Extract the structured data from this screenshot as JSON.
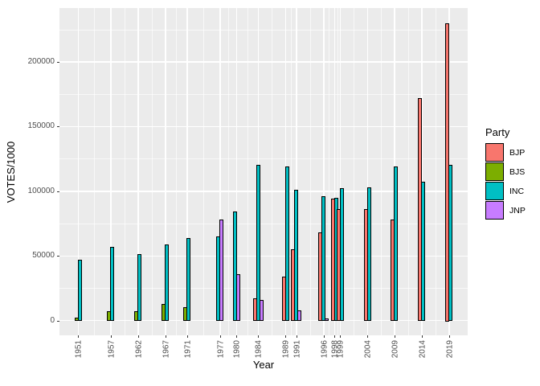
{
  "figure": {
    "panel_bg": "#EBEBEB",
    "grid_color": "#FFFFFF",
    "axis_text_color": "#4D4D4D",
    "bar_outline": "#000000"
  },
  "chart_data": {
    "type": "bar",
    "title": "",
    "xlabel": "Year",
    "ylabel": "VOTES/1000",
    "legend_title": "Party",
    "legend_position": "right",
    "grid": true,
    "xlim": [
      1947.6,
      2022.4
    ],
    "ylim": [
      -11500,
      241500
    ],
    "x_ticks": [
      1951,
      1957,
      1962,
      1967,
      1971,
      1977,
      1980,
      1984,
      1989,
      1991,
      1996,
      1998,
      1999,
      2004,
      2009,
      2014,
      2019
    ],
    "y_ticks": [
      0,
      50000,
      100000,
      150000,
      200000
    ],
    "y_tick_labels": [
      "0",
      "50000",
      "100000",
      "150000",
      "200000"
    ],
    "y_minor_ticks": [
      25000,
      75000,
      125000,
      175000,
      225000
    ],
    "parties": [
      {
        "name": "BJP",
        "color": "#F8766D"
      },
      {
        "name": "BJS",
        "color": "#7CAE00"
      },
      {
        "name": "INC",
        "color": "#00BFC4"
      },
      {
        "name": "JNP",
        "color": "#C77CFF"
      }
    ],
    "groups": [
      {
        "year": 1951,
        "bars": [
          {
            "party": "BJS",
            "value": 2000
          },
          {
            "party": "INC",
            "value": 47000
          }
        ]
      },
      {
        "year": 1957,
        "bars": [
          {
            "party": "BJS",
            "value": 7000
          },
          {
            "party": "INC",
            "value": 57000
          }
        ]
      },
      {
        "year": 1962,
        "bars": [
          {
            "party": "BJS",
            "value": 7000
          },
          {
            "party": "INC",
            "value": 51000
          }
        ]
      },
      {
        "year": 1967,
        "bars": [
          {
            "party": "BJS",
            "value": 13000
          },
          {
            "party": "INC",
            "value": 59000
          }
        ]
      },
      {
        "year": 1971,
        "bars": [
          {
            "party": "BJS",
            "value": 10000
          },
          {
            "party": "INC",
            "value": 64000
          }
        ]
      },
      {
        "year": 1977,
        "bars": [
          {
            "party": "INC",
            "value": 65000
          },
          {
            "party": "JNP",
            "value": 78000
          }
        ]
      },
      {
        "year": 1980,
        "bars": [
          {
            "party": "INC",
            "value": 84000
          },
          {
            "party": "JNP",
            "value": 36000
          }
        ]
      },
      {
        "year": 1984,
        "bars": [
          {
            "party": "BJP",
            "value": 17000
          },
          {
            "party": "INC",
            "value": 120000
          },
          {
            "party": "JNP",
            "value": 16000
          }
        ]
      },
      {
        "year": 1989,
        "bars": [
          {
            "party": "BJP",
            "value": 34000
          },
          {
            "party": "INC",
            "value": 119000
          }
        ]
      },
      {
        "year": 1991,
        "bars": [
          {
            "party": "BJP",
            "value": 55000
          },
          {
            "party": "INC",
            "value": 101000
          },
          {
            "party": "JNP",
            "value": 8000
          }
        ]
      },
      {
        "year": 1996,
        "bars": [
          {
            "party": "BJP",
            "value": 68000
          },
          {
            "party": "INC",
            "value": 96000
          },
          {
            "party": "JNP",
            "value": 1500
          }
        ]
      },
      {
        "year": 1998,
        "bars": [
          {
            "party": "BJP",
            "value": 94000
          },
          {
            "party": "INC",
            "value": 95000
          }
        ]
      },
      {
        "year": 1999,
        "bars": [
          {
            "party": "BJP",
            "value": 86000
          },
          {
            "party": "INC",
            "value": 102000
          }
        ]
      },
      {
        "year": 2004,
        "bars": [
          {
            "party": "BJP",
            "value": 86000
          },
          {
            "party": "INC",
            "value": 103000
          }
        ]
      },
      {
        "year": 2009,
        "bars": [
          {
            "party": "BJP",
            "value": 78000
          },
          {
            "party": "INC",
            "value": 119000
          }
        ]
      },
      {
        "year": 2014,
        "bars": [
          {
            "party": "BJP",
            "value": 172000
          },
          {
            "party": "INC",
            "value": 107000
          }
        ]
      },
      {
        "year": 2019,
        "bars": [
          {
            "party": "BJP",
            "value": 230000
          },
          {
            "party": "INC",
            "value": 120000
          }
        ]
      }
    ]
  },
  "legend": {
    "title": "Party",
    "items": [
      {
        "label": "BJP",
        "color": "#F8766D"
      },
      {
        "label": "BJS",
        "color": "#7CAE00"
      },
      {
        "label": "INC",
        "color": "#00BFC4"
      },
      {
        "label": "JNP",
        "color": "#C77CFF"
      }
    ]
  }
}
